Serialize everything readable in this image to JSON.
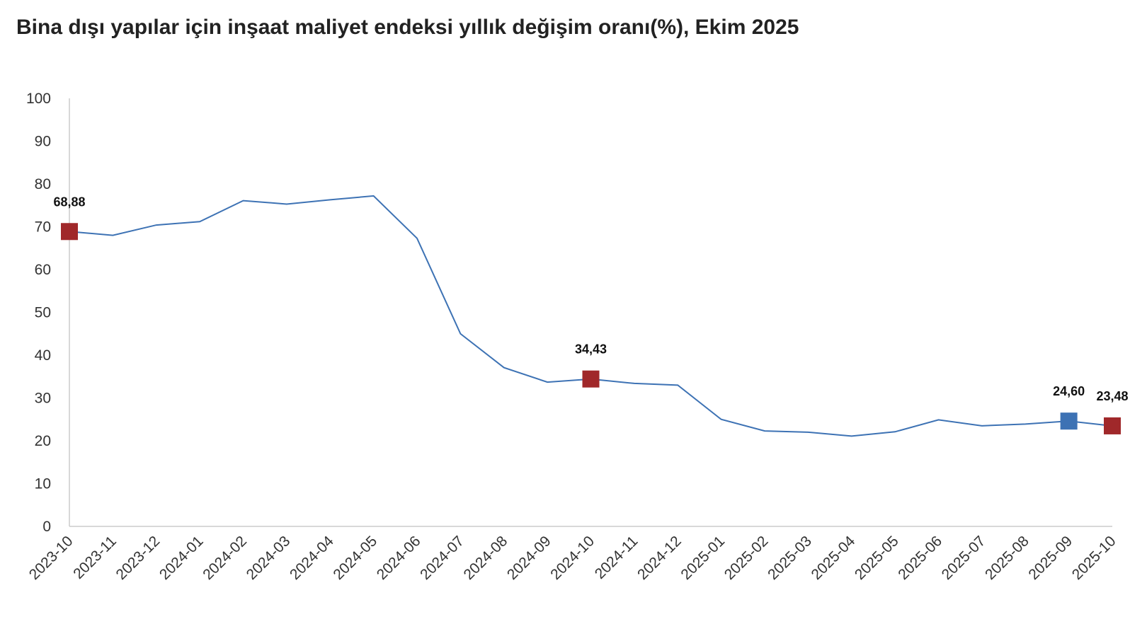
{
  "chart_data": {
    "type": "line",
    "title": "Bina dışı yapılar için inşaat maliyet endeksi yıllık değişim oranı(%), Ekim 2025",
    "categories": [
      "2023-10",
      "2023-11",
      "2023-12",
      "2024-01",
      "2024-02",
      "2024-03",
      "2024-04",
      "2024-05",
      "2024-06",
      "2024-07",
      "2024-08",
      "2024-09",
      "2024-10",
      "2024-11",
      "2024-12",
      "2025-01",
      "2025-02",
      "2025-03",
      "2025-04",
      "2025-05",
      "2025-06",
      "2025-07",
      "2025-08",
      "2025-09",
      "2025-10"
    ],
    "series": [
      {
        "color": "#3d72b4",
        "values": [
          68.88,
          68.0,
          70.4,
          71.2,
          76.1,
          75.3,
          76.3,
          77.2,
          67.3,
          45.0,
          37.1,
          33.7,
          34.43,
          33.4,
          33.0,
          25.0,
          22.3,
          22.0,
          21.1,
          22.1,
          24.9,
          23.5,
          23.9,
          24.6,
          23.48
        ],
        "value_labels": [
          "68,88",
          null,
          null,
          null,
          null,
          null,
          null,
          null,
          null,
          null,
          null,
          null,
          "34,43",
          null,
          null,
          null,
          null,
          null,
          null,
          null,
          null,
          null,
          null,
          "24,60",
          "23,48"
        ],
        "marker_colors": [
          "#a0282a",
          null,
          null,
          null,
          null,
          null,
          null,
          null,
          null,
          null,
          null,
          null,
          "#a0282a",
          null,
          null,
          null,
          null,
          null,
          null,
          null,
          null,
          null,
          null,
          "#3d72b4",
          "#a0282a"
        ]
      }
    ],
    "ylim": [
      0,
      100
    ],
    "yticks": [
      0,
      10,
      20,
      30,
      40,
      50,
      60,
      70,
      80,
      90,
      100
    ],
    "grid": false
  }
}
